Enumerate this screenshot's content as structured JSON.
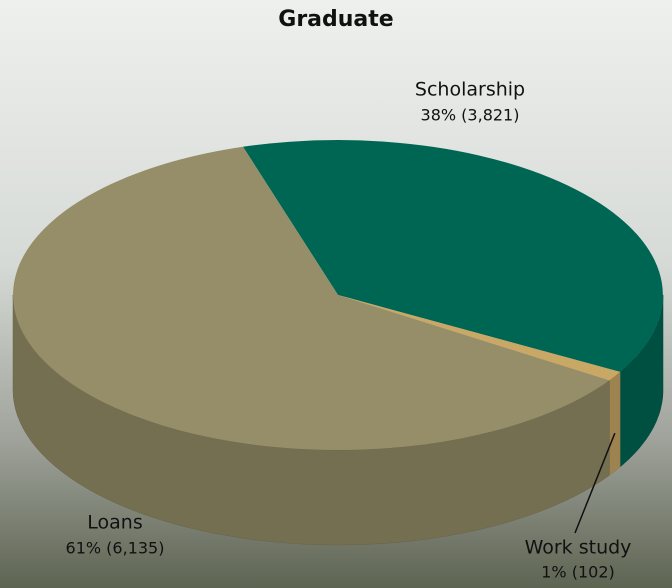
{
  "chart_data": {
    "type": "pie",
    "title": "Graduate",
    "categories": [
      "Scholarship",
      "Work study",
      "Loans"
    ],
    "values": [
      3821,
      102,
      6135
    ],
    "value_labels": [
      "38% (3,821)",
      "1% (102)",
      "61% (6,135)"
    ],
    "colors": [
      "#006654",
      "#c9a865",
      "#968e68"
    ]
  }
}
